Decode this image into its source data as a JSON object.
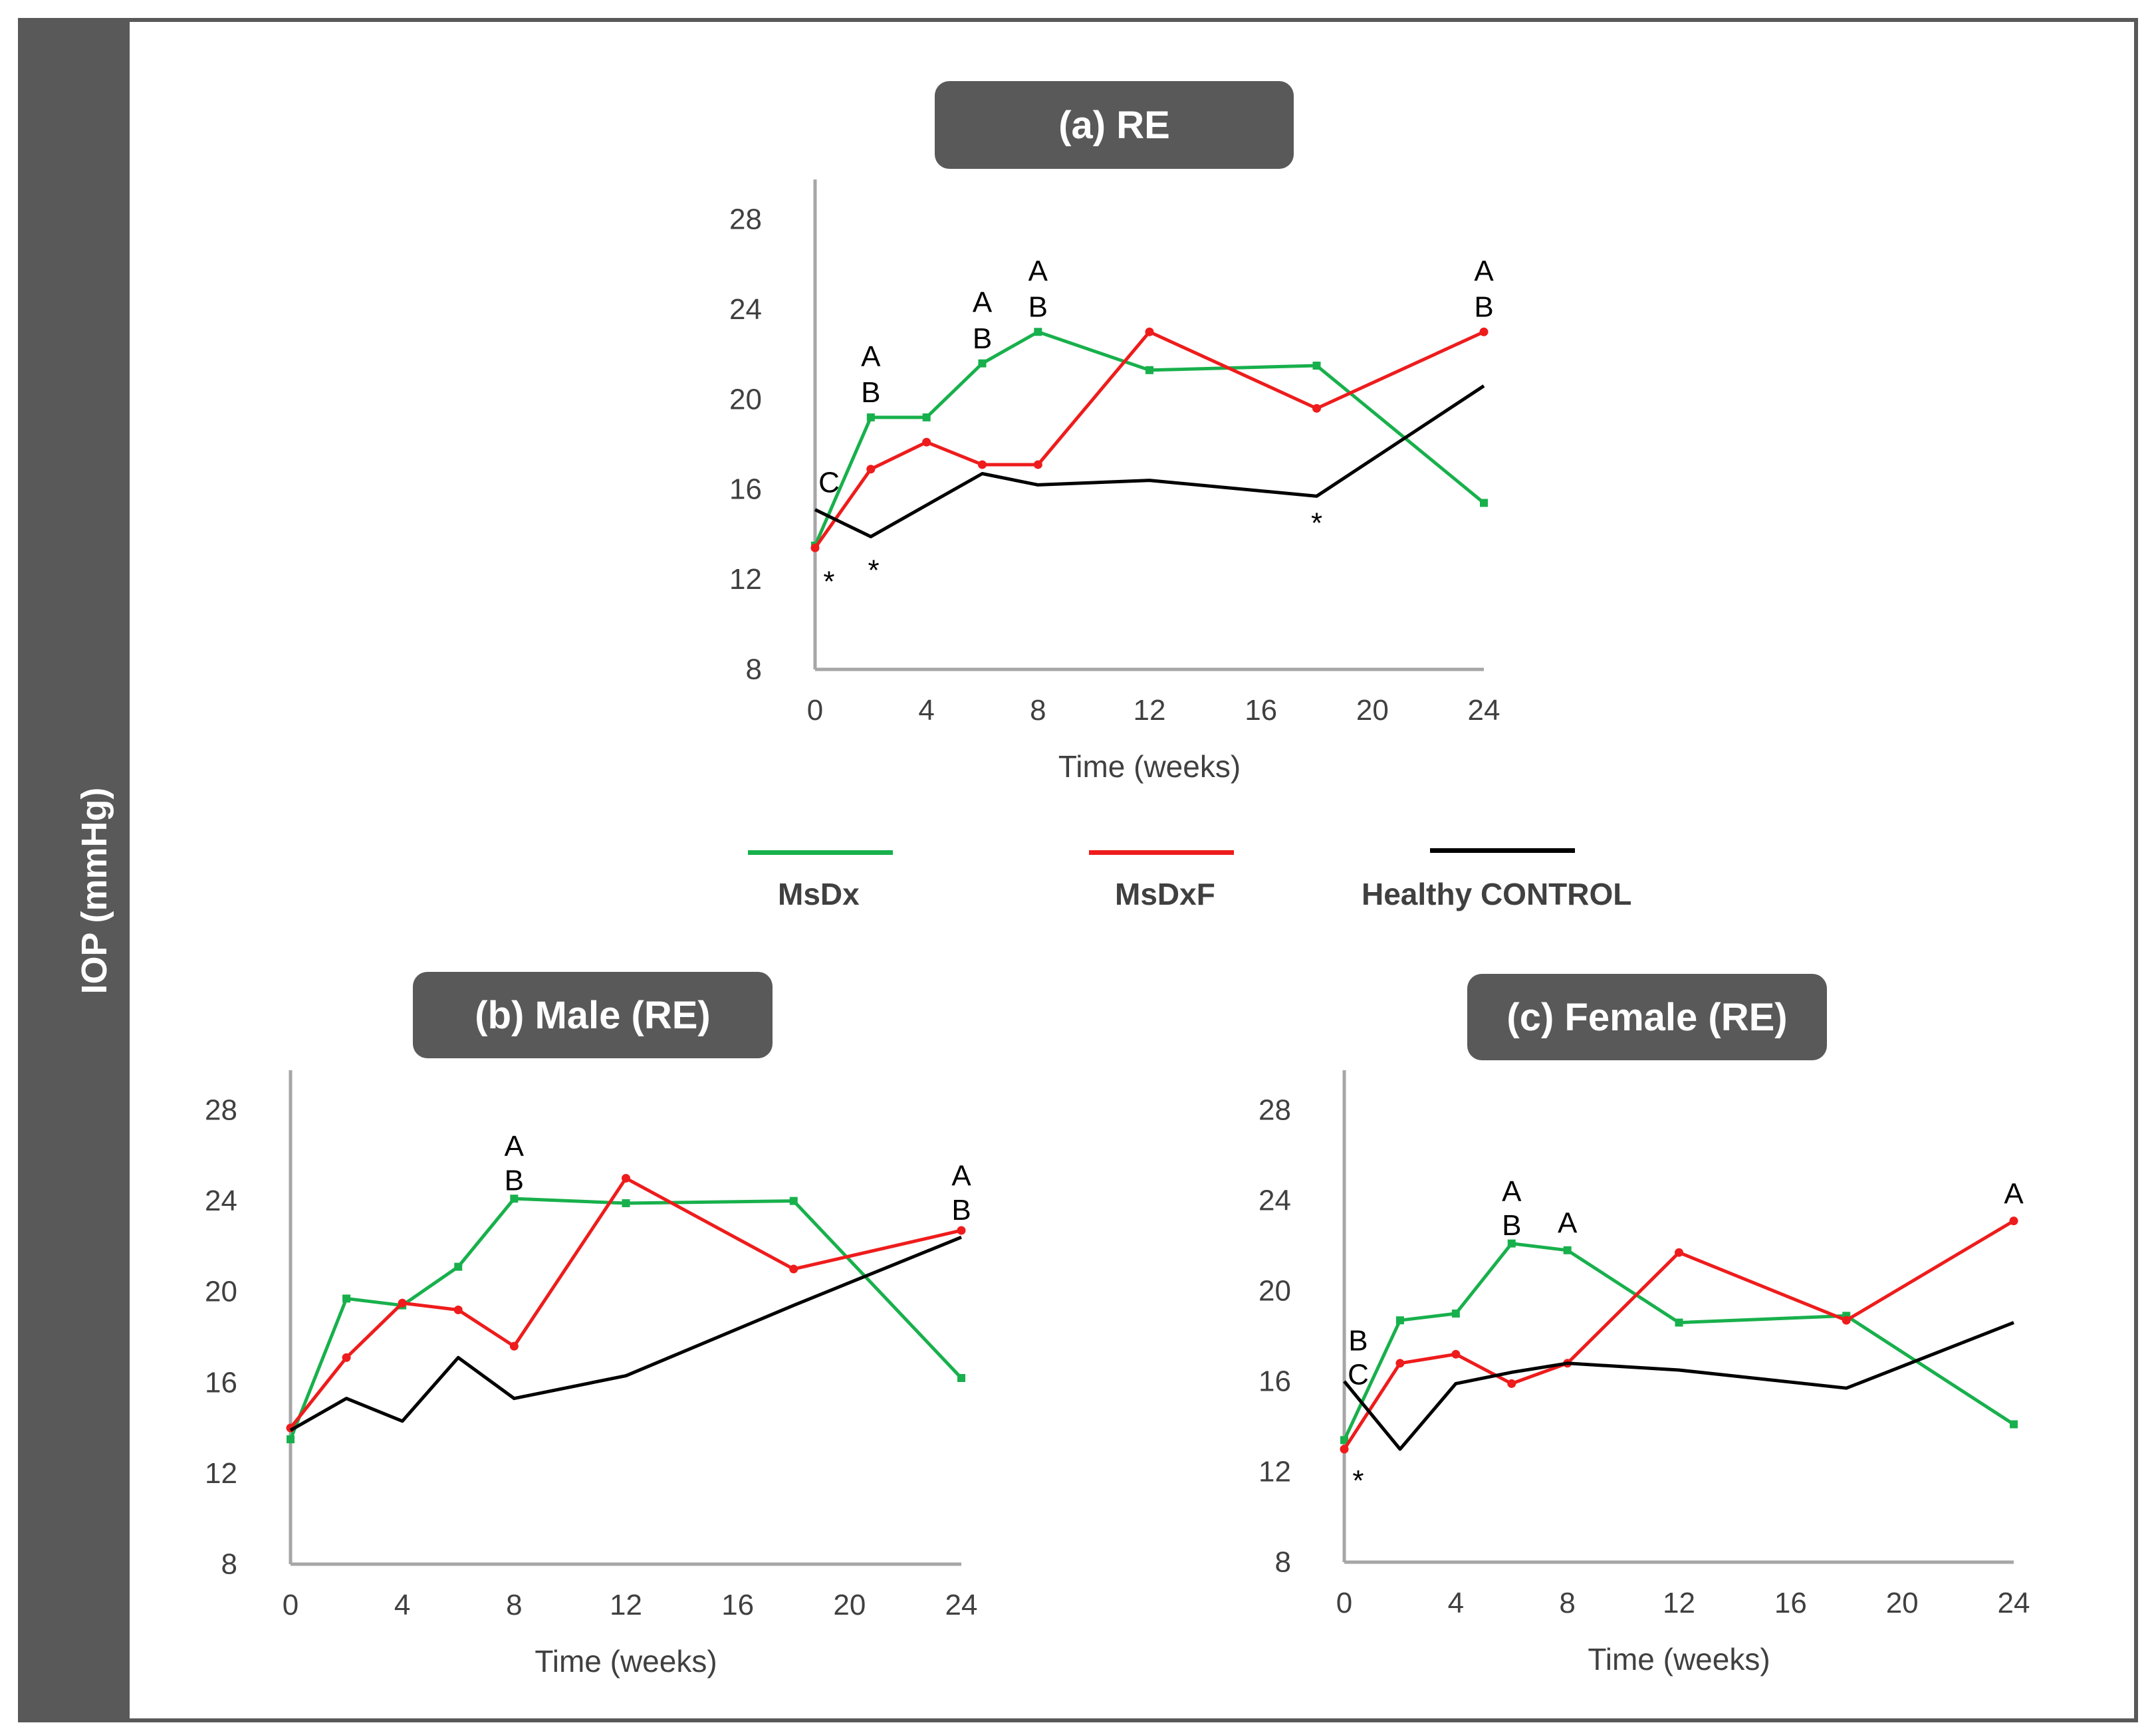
{
  "y_axis_label": "IOP (mmHg)",
  "legend": [
    {
      "label": "MsDx",
      "color": "#18b04c"
    },
    {
      "label": "MsDxF",
      "color": "#ee1c1c"
    },
    {
      "label": "Healthy CONTROL",
      "color": "#000000"
    }
  ],
  "chart_data": [
    {
      "type": "line",
      "title": "(a) RE",
      "xlabel": "Time (weeks)",
      "ylabel": "IOP (mmHg)",
      "xlim": [
        0,
        24
      ],
      "ylim": [
        8,
        28
      ],
      "xticks": [
        0,
        4,
        8,
        12,
        16,
        20,
        24
      ],
      "yticks": [
        8,
        12,
        16,
        20,
        24,
        28
      ],
      "grid": false,
      "series": [
        {
          "name": "MsDx",
          "color": "#18b04c",
          "marker": "square",
          "x": [
            0,
            2,
            4,
            6,
            8,
            12,
            18,
            24
          ],
          "y": [
            13.5,
            19.2,
            19.2,
            21.6,
            23.0,
            21.3,
            21.5,
            15.4
          ]
        },
        {
          "name": "MsDxF",
          "color": "#ee1c1c",
          "marker": "circle",
          "x": [
            0,
            2,
            4,
            6,
            8,
            12,
            18,
            24
          ],
          "y": [
            13.4,
            16.9,
            18.1,
            17.1,
            17.1,
            23.0,
            19.6,
            23.0
          ]
        },
        {
          "name": "Healthy CONTROL",
          "color": "#000000",
          "marker": "none",
          "x": [
            0,
            2,
            6,
            8,
            12,
            18,
            24
          ],
          "y": [
            15.1,
            13.9,
            16.7,
            16.2,
            16.4,
            15.7,
            20.6
          ]
        }
      ],
      "annotations": [
        {
          "text": "A",
          "x": 2,
          "y": 21.9
        },
        {
          "text": "B",
          "x": 2,
          "y": 20.3
        },
        {
          "text": "A",
          "x": 6,
          "y": 24.3
        },
        {
          "text": "B",
          "x": 6,
          "y": 22.7
        },
        {
          "text": "A",
          "x": 8,
          "y": 25.7
        },
        {
          "text": "B",
          "x": 8,
          "y": 24.1
        },
        {
          "text": "A",
          "x": 24,
          "y": 25.7
        },
        {
          "text": "B",
          "x": 24,
          "y": 24.1
        },
        {
          "text": "C",
          "x": 0.5,
          "y": 16.3
        },
        {
          "text": "*",
          "x": 0.5,
          "y": 11.9
        },
        {
          "text": "*",
          "x": 2.1,
          "y": 12.4
        },
        {
          "text": "*",
          "x": 18,
          "y": 14.5
        }
      ]
    },
    {
      "type": "line",
      "title": "(b) Male (RE)",
      "xlabel": "Time (weeks)",
      "ylabel": "IOP (mmHg)",
      "xlim": [
        0,
        24
      ],
      "ylim": [
        8,
        28
      ],
      "xticks": [
        0,
        4,
        8,
        12,
        16,
        20,
        24
      ],
      "yticks": [
        8,
        12,
        16,
        20,
        24,
        28
      ],
      "grid": false,
      "series": [
        {
          "name": "MsDx",
          "color": "#18b04c",
          "marker": "square",
          "x": [
            0,
            2,
            4,
            6,
            8,
            12,
            18,
            24
          ],
          "y": [
            13.5,
            19.7,
            19.4,
            21.1,
            24.1,
            23.9,
            24.0,
            16.2
          ]
        },
        {
          "name": "MsDxF",
          "color": "#ee1c1c",
          "marker": "circle",
          "x": [
            0,
            2,
            4,
            6,
            8,
            12,
            18,
            24
          ],
          "y": [
            14.0,
            17.1,
            19.5,
            19.2,
            17.6,
            25.0,
            21.0,
            22.7
          ]
        },
        {
          "name": "Healthy CONTROL",
          "color": "#000000",
          "marker": "none",
          "x": [
            0,
            2,
            4,
            6,
            8,
            12,
            18,
            24
          ],
          "y": [
            13.9,
            15.3,
            14.3,
            17.1,
            15.3,
            16.3,
            19.4,
            22.4
          ]
        }
      ],
      "annotations": [
        {
          "text": "A",
          "x": 8,
          "y": 26.4
        },
        {
          "text": "B",
          "x": 8,
          "y": 24.9
        },
        {
          "text": "A",
          "x": 24,
          "y": 25.1
        },
        {
          "text": "B",
          "x": 24,
          "y": 23.6
        }
      ]
    },
    {
      "type": "line",
      "title": "(c) Female (RE)",
      "xlabel": "Time (weeks)",
      "ylabel": "IOP (mmHg)",
      "xlim": [
        0,
        24
      ],
      "ylim": [
        8,
        28
      ],
      "xticks": [
        0,
        4,
        8,
        12,
        16,
        20,
        24
      ],
      "yticks": [
        8,
        12,
        16,
        20,
        24,
        28
      ],
      "grid": false,
      "series": [
        {
          "name": "MsDx",
          "color": "#18b04c",
          "marker": "square",
          "x": [
            0,
            2,
            4,
            6,
            8,
            12,
            18,
            24
          ],
          "y": [
            13.4,
            18.7,
            19.0,
            22.1,
            21.8,
            18.6,
            18.9,
            14.1
          ]
        },
        {
          "name": "MsDxF",
          "color": "#ee1c1c",
          "marker": "circle",
          "x": [
            0,
            2,
            4,
            6,
            8,
            12,
            18,
            24
          ],
          "y": [
            13.0,
            16.8,
            17.2,
            15.9,
            16.8,
            21.7,
            18.7,
            23.1
          ]
        },
        {
          "name": "Healthy CONTROL",
          "color": "#000000",
          "marker": "none",
          "x": [
            0,
            2,
            4,
            6,
            8,
            12,
            18,
            24
          ],
          "y": [
            16.0,
            13.0,
            15.9,
            16.4,
            16.8,
            16.5,
            15.7,
            18.6
          ]
        }
      ],
      "annotations": [
        {
          "text": "A",
          "x": 6,
          "y": 24.4
        },
        {
          "text": "B",
          "x": 6,
          "y": 22.9
        },
        {
          "text": "A",
          "x": 8,
          "y": 23.0
        },
        {
          "text": "A",
          "x": 24,
          "y": 24.3
        },
        {
          "text": "B",
          "x": 0.5,
          "y": 17.8
        },
        {
          "text": "C",
          "x": 0.5,
          "y": 16.3
        },
        {
          "text": "*",
          "x": 0.5,
          "y": 11.6
        }
      ]
    }
  ]
}
